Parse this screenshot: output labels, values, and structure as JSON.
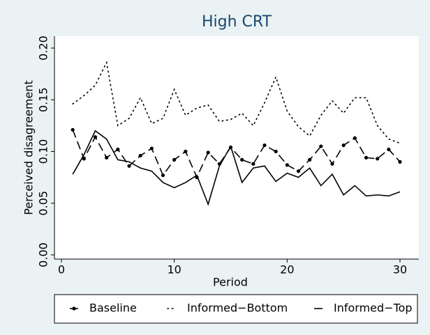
{
  "chart_data": {
    "type": "line",
    "title": "High CRT",
    "x_label": "Period",
    "y_label": "Perceived disagreement",
    "x": [
      1,
      2,
      3,
      4,
      5,
      6,
      7,
      8,
      9,
      10,
      11,
      12,
      13,
      14,
      15,
      16,
      17,
      18,
      19,
      20,
      21,
      22,
      23,
      24,
      25,
      26,
      27,
      28,
      29,
      30
    ],
    "series": [
      {
        "name": "Baseline",
        "color": "#000000",
        "style": "dash-dot-marker",
        "values": [
          0.121,
          0.093,
          0.114,
          0.094,
          0.102,
          0.086,
          0.096,
          0.103,
          0.077,
          0.092,
          0.1,
          0.075,
          0.099,
          0.088,
          0.104,
          0.092,
          0.088,
          0.106,
          0.1,
          0.087,
          0.081,
          0.092,
          0.105,
          0.088,
          0.106,
          0.113,
          0.094,
          0.093,
          0.102,
          0.09
        ]
      },
      {
        "name": "Informed−Bottom",
        "color": "#000000",
        "style": "dotted",
        "values": [
          0.146,
          0.154,
          0.164,
          0.186,
          0.125,
          0.132,
          0.152,
          0.127,
          0.132,
          0.16,
          0.135,
          0.142,
          0.145,
          0.129,
          0.131,
          0.137,
          0.125,
          0.147,
          0.172,
          0.139,
          0.124,
          0.115,
          0.135,
          0.149,
          0.137,
          0.152,
          0.152,
          0.125,
          0.112,
          0.108
        ]
      },
      {
        "name": "Informed−Top",
        "color": "#000000",
        "style": "solid",
        "values": [
          0.078,
          0.097,
          0.12,
          0.112,
          0.092,
          0.09,
          0.084,
          0.081,
          0.07,
          0.065,
          0.07,
          0.077,
          0.049,
          0.086,
          0.105,
          0.07,
          0.084,
          0.086,
          0.071,
          0.079,
          0.075,
          0.084,
          0.067,
          0.078,
          0.058,
          0.067,
          0.057,
          0.058,
          0.057,
          0.061
        ]
      }
    ],
    "xlim": [
      0,
      30
    ],
    "xticks": [
      0,
      10,
      20,
      30
    ],
    "ylim": [
      0,
      0.2
    ],
    "yticks": [
      {
        "value": 0,
        "label": "0.00"
      },
      {
        "value": 0.05,
        "label": "0.05"
      },
      {
        "value": 0.1,
        "label": "0.10"
      },
      {
        "value": 0.15,
        "label": "0.15"
      },
      {
        "value": 0.2,
        "label": "0.20"
      }
    ],
    "legend": "bottom"
  }
}
